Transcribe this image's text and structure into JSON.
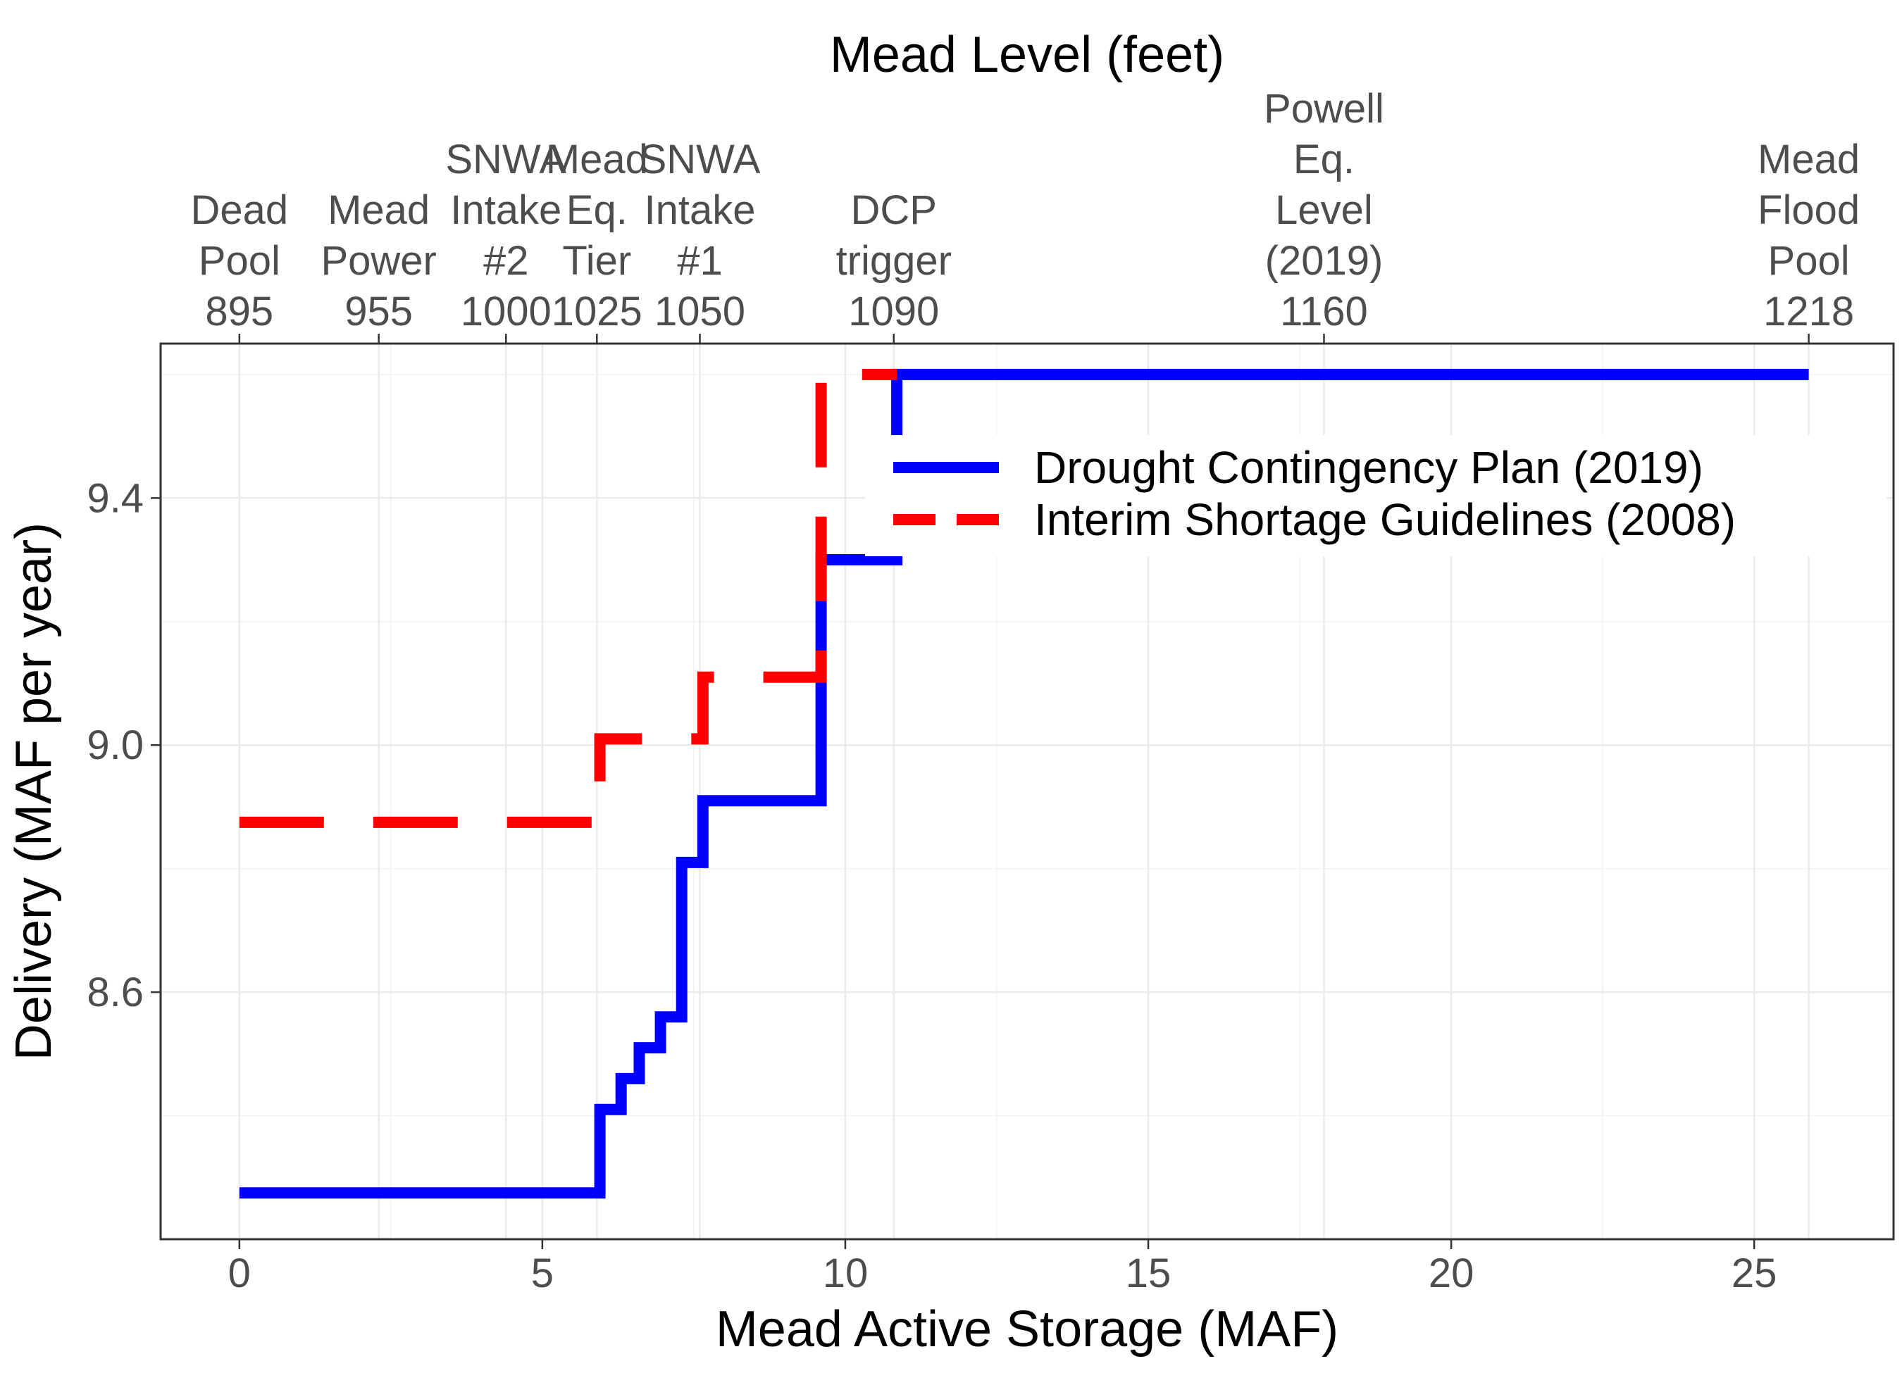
{
  "chart_data": {
    "type": "line",
    "title": "",
    "xlabel": "Mead Active Storage (MAF)",
    "ylabel": "Delivery (MAF per year)",
    "top_axis_title": "Mead Level (feet)",
    "xlim": [
      -1.3,
      27.3
    ],
    "ylim": [
      8.2,
      9.65
    ],
    "x_ticks": [
      0,
      5,
      10,
      15,
      20,
      25
    ],
    "y_ticks": [
      8.6,
      9.0,
      9.4
    ],
    "grid": true,
    "legend_position": "top-right",
    "top_ticks": [
      {
        "storage": 0.0,
        "lines": [
          "Dead",
          "Pool",
          "895"
        ]
      },
      {
        "storage": 2.3,
        "lines": [
          "Mead",
          "Power",
          "955"
        ]
      },
      {
        "storage": 4.4,
        "lines": [
          "SNWA",
          "Intake",
          "#2",
          "1000"
        ]
      },
      {
        "storage": 5.9,
        "lines": [
          "Mead",
          "Eq.",
          "Tier",
          "1025"
        ]
      },
      {
        "storage": 7.6,
        "lines": [
          "SNWA",
          "Intake",
          "#1",
          "1050"
        ]
      },
      {
        "storage": 10.8,
        "lines": [
          "DCP",
          "trigger",
          "1090"
        ]
      },
      {
        "storage": 17.9,
        "lines": [
          "Powell",
          "Eq.",
          "Level",
          "(2019)",
          "1160"
        ]
      },
      {
        "storage": 25.9,
        "lines": [
          "Mead",
          "Flood",
          "Pool",
          "1218"
        ]
      }
    ],
    "series": [
      {
        "name": "Drought Contingency Plan (2019)",
        "color": "#0000ff",
        "dash": "solid",
        "x": [
          0,
          5.95,
          5.95,
          6.3,
          6.3,
          6.6,
          6.6,
          6.95,
          6.95,
          7.3,
          7.3,
          7.65,
          7.65,
          9.6,
          9.6,
          10.85,
          10.85,
          25.9
        ],
        "y": [
          8.275,
          8.275,
          8.41,
          8.41,
          8.46,
          8.46,
          8.51,
          8.51,
          8.56,
          8.56,
          8.81,
          8.81,
          8.91,
          8.91,
          9.3,
          9.3,
          9.6,
          9.6
        ]
      },
      {
        "name": "Interim Shortage Guidelines (2008)",
        "color": "#ff0000",
        "dash": "dashed",
        "x": [
          0,
          5.95,
          5.95,
          7.65,
          7.65,
          9.6,
          9.6,
          10.85
        ],
        "y": [
          8.875,
          8.875,
          9.01,
          9.01,
          9.11,
          9.11,
          9.6,
          9.6
        ]
      }
    ]
  }
}
